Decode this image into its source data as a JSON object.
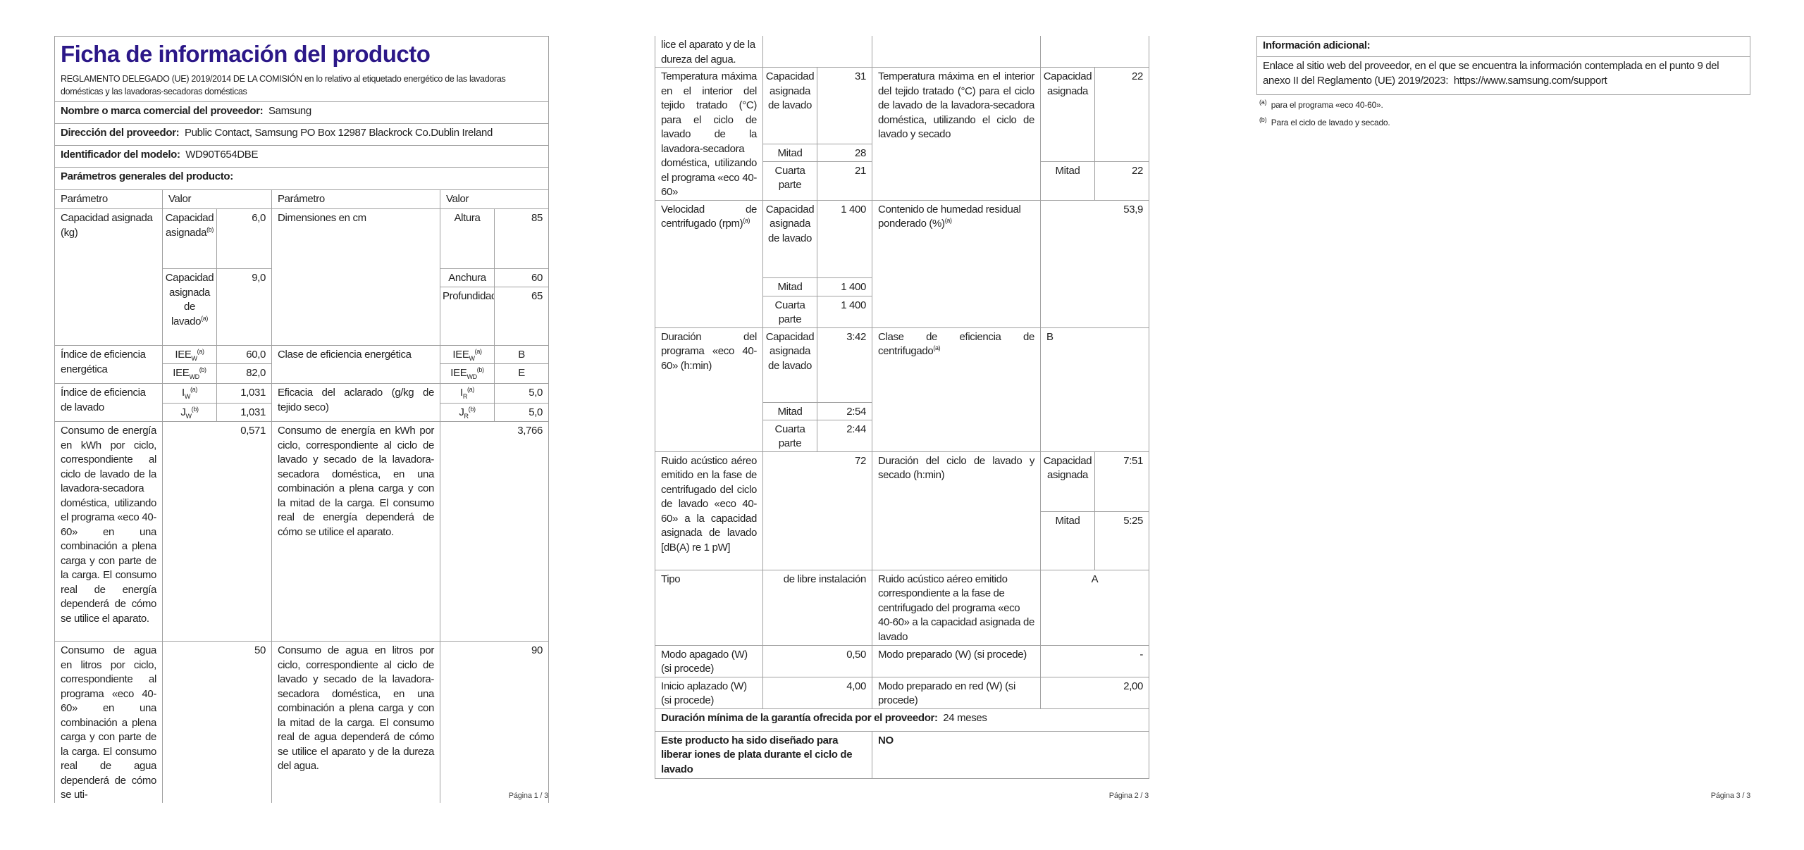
{
  "page1": {
    "title": "Ficha de información del producto",
    "regulation": "REGLAMENTO DELEGADO (UE) 2019/2014 DE LA COMISIÓN en lo relativo al etiquetado energético de las lavadoras domésticas y las lavadoras-secadoras domésticas",
    "supplier_name": {
      "label": "Nombre o marca comercial del proveedor:",
      "value": "Samsung"
    },
    "supplier_address": {
      "label": "Dirección del proveedor:",
      "value": "Public Contact, Samsung PO Box 12987 Blackrock Co.Dublin Ireland"
    },
    "model_id": {
      "label": "Identificador del modelo:",
      "value": "WD90T654DBE"
    },
    "general_heading": "Parámetros generales del producto:",
    "headers": [
      "Parámetro",
      "Valor",
      "Parámetro",
      "Valor"
    ],
    "capacity": {
      "label": "Capacidad asignada (kg)",
      "sub1": "Capacidad asignada",
      "sup1": "(b)",
      "val1": "6,0",
      "sub2": "Capacidad asignada de lavado",
      "sup2": "(a)",
      "val2": "9,0"
    },
    "dimensions": {
      "label": "Dimensiones en cm",
      "height_label": "Altura",
      "height": "85",
      "width_label": "Anchura",
      "width": "60",
      "depth_label": "Profundidad",
      "depth": "65"
    },
    "eei": {
      "label": "Índice de eficiencia energética",
      "w_base": "IEE",
      "w_sub": "W",
      "w_sup": "(a)",
      "w_val": "60,0",
      "wd_base": "IEE",
      "wd_sub": "WD",
      "wd_sup": "(b)",
      "wd_val": "82,0"
    },
    "energy_class": {
      "label": "Clase de eficiencia energética",
      "w_base": "IEE",
      "w_sub": "W",
      "w_sup": "(a)",
      "w_val": "B",
      "wd_base": "IEE",
      "wd_sub": "WD",
      "wd_sup": "(b)",
      "wd_val": "E"
    },
    "wash_index": {
      "label": "Índice de eficiencia de lavado",
      "i_base": "I",
      "i_sub": "W",
      "i_sup": "(a)",
      "i_val": "1,031",
      "j_base": "J",
      "j_sub": "W",
      "j_sup": "(b)",
      "j_val": "1,031"
    },
    "rinse": {
      "label": "Eficacia del aclarado (g/kg de tejido seco)",
      "i_base": "I",
      "i_sub": "R",
      "i_sup": "(a)",
      "i_val": "5,0",
      "j_base": "J",
      "j_sub": "R",
      "j_sup": "(b)",
      "j_val": "5,0"
    },
    "energy_wash": {
      "label": "Consumo de energía en kWh por ciclo, correspondiente al ciclo de lavado de la lavadora-secadora doméstica, utilizando el programa «eco 40-60» en una combinación a plena carga y con parte de la carga. El consumo real de energía dependerá de cómo se utilice el aparato.",
      "value": "0,571"
    },
    "energy_washdry": {
      "label": "Consumo de energía en kWh por ciclo, correspondiente al ciclo de lavado y secado de la lavadora-secadora doméstica, en una combinación a plena carga y con la mitad de la carga. El consumo real de energía dependerá de cómo se utilice el aparato.",
      "value": "3,766"
    },
    "water_wash": {
      "label": "Consumo de agua en litros por ciclo, correspondiente al programa «eco 40-60» en una combinación a plena carga y con parte de la carga. El consumo real de agua dependerá de cómo se uti-",
      "value": "50"
    },
    "water_washdry": {
      "label": "Consumo de agua en litros por ciclo, correspondiente al ciclo de lavado y secado de la lavadora-secadora doméstica, en una combinación a plena carga y con la mitad de la carga. El consumo real de agua dependerá de cómo se utilice el aparato y de la dureza del agua.",
      "value": "90"
    },
    "page_number": "Página 1 / 3"
  },
  "page2": {
    "continuation": "lice el aparato y de la dureza del agua.",
    "temp_wash": {
      "label": "Temperatura máxima en el interior del tejido tratado (°C) para el ciclo de lavado de la lavadora-secadora doméstica, utilizando el programa «eco 40-60»",
      "sub1": "Capacidad asignada de lavado",
      "val1": "31",
      "sub2": "Mitad",
      "val2": "28",
      "sub3": "Cuarta parte",
      "val3": "21"
    },
    "temp_washdry": {
      "label": "Temperatura máxima en el interior del tejido tratado (°C) para el ciclo de lavado de la lavadora-secadora doméstica, utilizando el ciclo de lavado y secado",
      "sub1": "Capacidad asignada",
      "val1": "22",
      "sub2": "Mitad",
      "val2": "22"
    },
    "spin_speed": {
      "label": "Velocidad de centrifugado (rpm)",
      "sup": "(a)",
      "sub1": "Capacidad asignada de lavado",
      "val1": "1 400",
      "sub2": "Mitad",
      "val2": "1 400",
      "sub3": "Cuarta parte",
      "val3": "1 400"
    },
    "moisture": {
      "label": "Contenido de humedad residual ponderado (%)",
      "sup": "(a)",
      "value": "53,9"
    },
    "duration": {
      "label": "Duración del programa «eco 40-60» (h:min)",
      "sub1": "Capacidad asignada de lavado",
      "val1": "3:42",
      "sub2": "Mitad",
      "val2": "2:54",
      "sub3": "Cuarta parte",
      "val3": "2:44"
    },
    "spin_class": {
      "label": "Clase de eficiencia de centrifugado",
      "sup": "(a)",
      "value": "B"
    },
    "noise": {
      "label": "Ruido acústico aéreo emitido en la fase de centrifugado del ciclo de lavado «eco 40-60» a la capacidad asignada de lavado [dB(A) re 1 pW]",
      "value": "72"
    },
    "washdry_duration": {
      "label": "Duración del ciclo de lavado y secado (h:min)",
      "sub1": "Capacidad asignada",
      "val1": "7:51",
      "sub2": "Mitad",
      "val2": "5:25"
    },
    "type": {
      "label": "Tipo",
      "value": "de libre instalación"
    },
    "noise_class": {
      "label": "Ruido acústico aéreo emitido correspondiente a la fase de centrifugado del programa «eco 40-60» a la capacidad asignada de lavado",
      "value": "A"
    },
    "off_mode": {
      "label": "Modo apagado (W) (si procede)",
      "value": "0,50"
    },
    "standby": {
      "label": "Modo preparado (W) (si procede)",
      "value": "-"
    },
    "delay_start": {
      "label": "Inicio aplazado (W) (si procede)",
      "value": "4,00"
    },
    "network_standby": {
      "label": "Modo preparado en red (W) (si procede)",
      "value": "2,00"
    },
    "warranty": {
      "label": "Duración mínima de la garantía ofrecida por el proveedor:",
      "value": "24 meses"
    },
    "silver_ions": {
      "label": "Este producto ha sido diseñado para liberar iones de plata durante el ciclo de lavado",
      "value": "NO"
    },
    "page_number": "Página 2 / 3"
  },
  "page3": {
    "heading": "Información adicional:",
    "link_text": "Enlace al sitio web del proveedor, en el que se encuentra la información contemplada en el punto 9 del anexo II del Reglamento (UE) 2019/2023:",
    "url": "https://www.samsung.com/support",
    "footnotes": [
      {
        "mark": "(a)",
        "text": "para el programa «eco 40-60»."
      },
      {
        "mark": "(b)",
        "text": "Para el ciclo de lavado y secado."
      }
    ],
    "page_number": "Página 3 / 3"
  },
  "colors": {
    "title": "#2c1888",
    "border": "#a0a0a0",
    "text": "#222222"
  }
}
